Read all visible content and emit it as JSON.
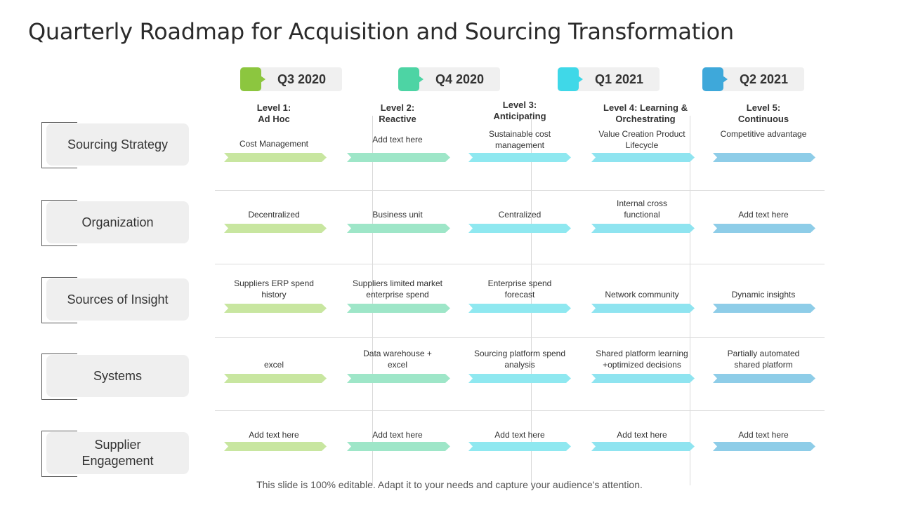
{
  "title": "Quarterly Roadmap for Acquisition and Sourcing Transformation",
  "quarters": [
    {
      "label": "Q3 2020",
      "color": "#8cc63f"
    },
    {
      "label": "Q4 2020",
      "color": "#4dd4a4"
    },
    {
      "label": "Q1 2021",
      "color": "#3fd8e8"
    },
    {
      "label": "Q2 2021",
      "color": "#3ea8da"
    }
  ],
  "levels": [
    {
      "line1": "Level 1:",
      "line2": "Ad Hoc"
    },
    {
      "line1": "Level 2:",
      "line2": "Reactive"
    },
    {
      "line1": "Level 3:",
      "line2": "Anticipating"
    },
    {
      "line1": "Level 4: Learning &",
      "line2": "Orchestrating"
    },
    {
      "line1": "Level 5:",
      "line2": "Continuous"
    }
  ],
  "rows": [
    {
      "label": "Sourcing Strategy",
      "cells": [
        "Cost Management",
        "Add text here",
        "Sustainable cost\nmanagement",
        "Value Creation Product\nLifecycle",
        "Competitive advantage"
      ]
    },
    {
      "label": "Organization",
      "cells": [
        "Decentralized",
        "Business unit",
        "Centralized",
        "Internal cross\nfunctional",
        "Add text here"
      ]
    },
    {
      "label": "Sources of Insight",
      "cells": [
        "Suppliers ERP spend\nhistory",
        "Suppliers limited market\nenterprise spend",
        "Enterprise spend\nforecast",
        "Network community",
        "Dynamic insights"
      ]
    },
    {
      "label": "Systems",
      "cells": [
        "excel",
        "Data warehouse +\nexcel",
        "Sourcing platform spend\nanalysis",
        "Shared platform learning\n+optimized decisions",
        "Partially automated\nshared platform"
      ]
    },
    {
      "label": "Supplier\nEngagement",
      "cells": [
        "Add text here",
        "Add text here",
        "Add text here",
        "Add text here",
        "Add text here"
      ]
    }
  ],
  "arrow_colors": [
    "#c8e6a0",
    "#9ee6c8",
    "#8fe8f0",
    "#8fe4f0",
    "#8ecde8"
  ],
  "footer": "This slide is 100% editable. Adapt it to your needs and capture your audience's attention."
}
